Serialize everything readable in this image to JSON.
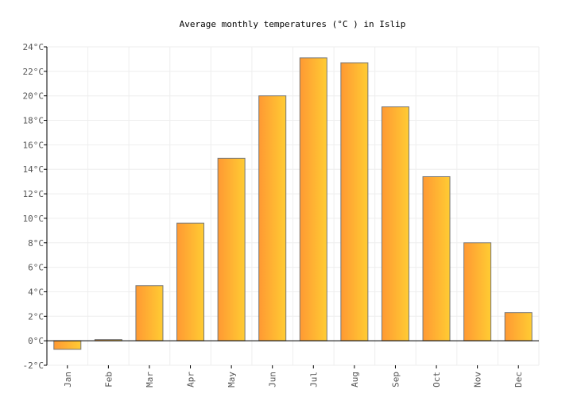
{
  "chart_data": {
    "type": "bar",
    "title": "Average monthly temperatures (°C ) in Islip",
    "xlabel": "",
    "ylabel": "",
    "categories": [
      "Jan",
      "Feb",
      "Mar",
      "Apr",
      "May",
      "Jun",
      "Jul",
      "Aug",
      "Sep",
      "Oct",
      "Nov",
      "Dec"
    ],
    "values": [
      -0.7,
      0.1,
      4.5,
      9.6,
      14.9,
      20.0,
      23.1,
      22.7,
      19.1,
      13.4,
      8.0,
      2.3
    ],
    "ylim": [
      -2,
      24
    ],
    "yticks": [
      "-2°C",
      "0°C",
      "2°C",
      "4°C",
      "6°C",
      "8°C",
      "10°C",
      "12°C",
      "14°C",
      "16°C",
      "18°C",
      "20°C",
      "22°C",
      "24°C"
    ],
    "grid": true,
    "legend": "none",
    "colors": {
      "bar_start": "#ff9933",
      "bar_end": "#ffcc33",
      "bar_stroke": "#777777",
      "grid": "#eeeeee"
    }
  }
}
